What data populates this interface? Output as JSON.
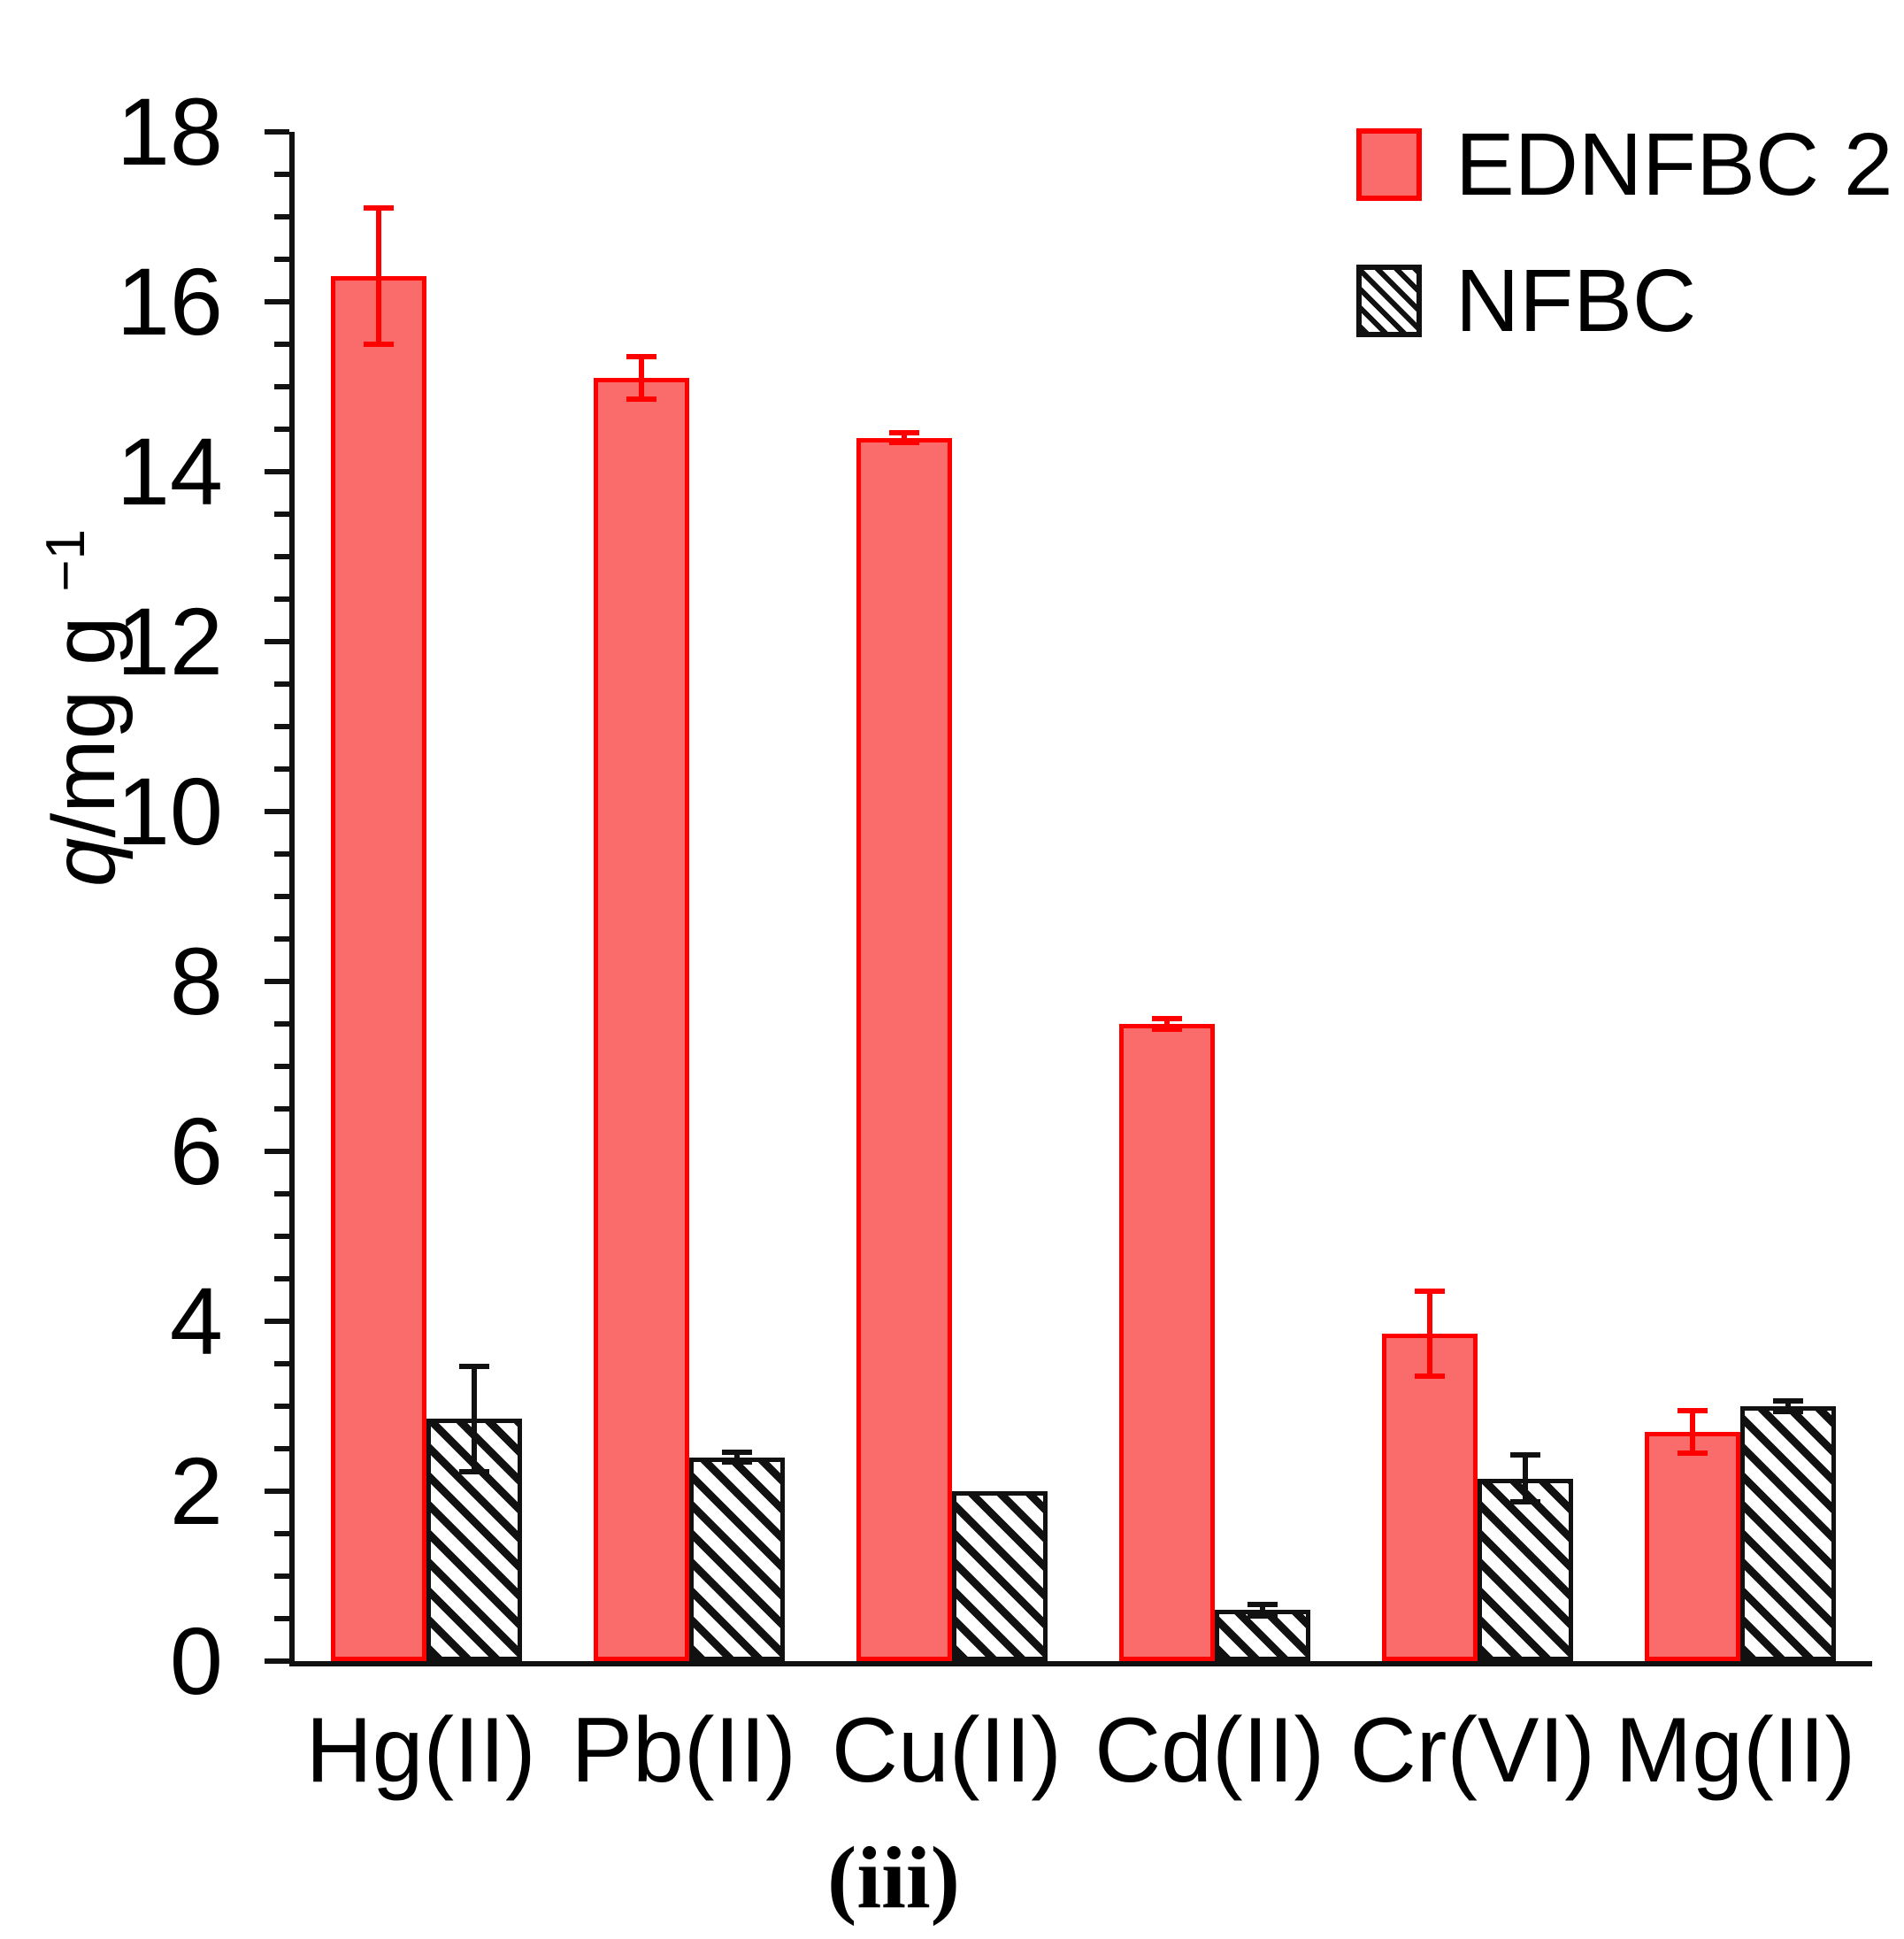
{
  "axis": {
    "ylabel_q": "q",
    "ylabel_mid": "/mg g",
    "ylabel_sup": "−1"
  },
  "chart_data": {
    "type": "bar",
    "title": "",
    "categories": [
      "Hg(II)",
      "Pb(II)",
      "Cu(II)",
      "Cd(II)",
      "Cr(VI)",
      "Mg(II)"
    ],
    "series": [
      {
        "name": "EDNFBC 2",
        "values": [
          16.3,
          15.1,
          14.4,
          7.5,
          3.85,
          2.7
        ],
        "errors": [
          0.8,
          0.25,
          0.06,
          0.06,
          0.5,
          0.25
        ],
        "style": "solid",
        "fill_color": "#FA6B6B",
        "edge_color": "#FE0000"
      },
      {
        "name": "NFBC",
        "values": [
          2.85,
          2.4,
          2.0,
          0.6,
          2.15,
          3.0
        ],
        "errors": [
          0.62,
          0.06,
          0,
          0.07,
          0.28,
          0.06
        ],
        "style": "diagonal-hatch",
        "fill_color": "#FFFFFF",
        "edge_color": "#111111"
      }
    ],
    "xlabel": "",
    "ylabel": "q/mg g⁻¹",
    "ylim": [
      0,
      18
    ],
    "yticks": [
      0,
      2,
      4,
      6,
      8,
      10,
      12,
      14,
      16,
      18
    ],
    "ytick_minor_step": 0.5,
    "grid": false,
    "legend_position": "top-right",
    "caption": "(iii)"
  }
}
